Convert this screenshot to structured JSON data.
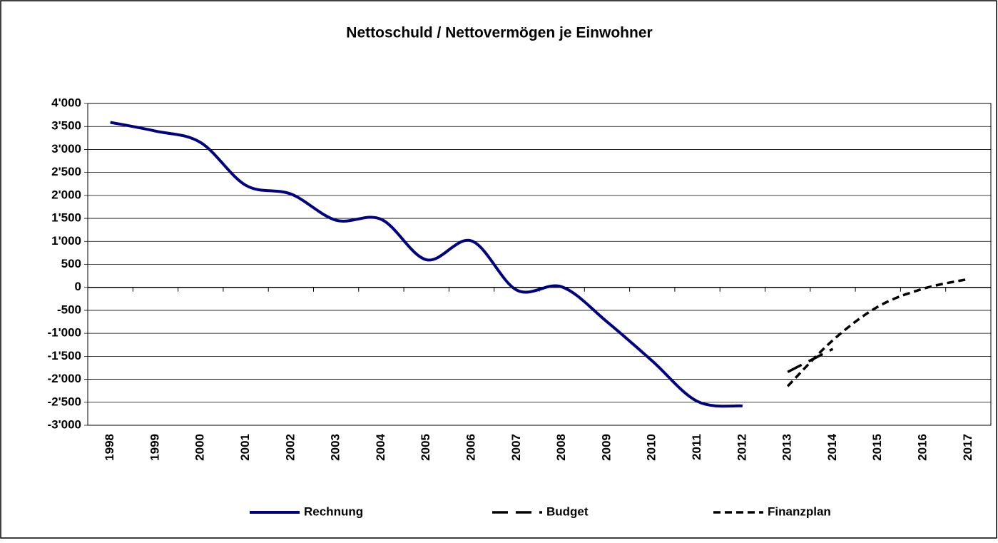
{
  "chart_data": {
    "type": "line",
    "title": "Nettoschuld / Nettovermögen je Einwohner",
    "categories": [
      "1998",
      "1999",
      "2000",
      "2001",
      "2002",
      "2003",
      "2004",
      "2005",
      "2006",
      "2007",
      "2008",
      "2009",
      "2010",
      "2011",
      "2012",
      "2013",
      "2014",
      "2015",
      "2016",
      "2017"
    ],
    "series": [
      {
        "name": "Rechnung",
        "color": "#000080",
        "style": "solid",
        "values": [
          3590,
          3400,
          3150,
          2220,
          2030,
          1460,
          1480,
          600,
          1010,
          -60,
          10,
          -750,
          -1600,
          -2480,
          -2580,
          null,
          null,
          null,
          null,
          null
        ]
      },
      {
        "name": "Budget",
        "color": "#000000",
        "style": "long-dash",
        "values": [
          null,
          null,
          null,
          null,
          null,
          null,
          null,
          null,
          null,
          null,
          null,
          null,
          null,
          null,
          null,
          -1840,
          -1340,
          null,
          null,
          null
        ]
      },
      {
        "name": "Finanzplan",
        "color": "#000000",
        "style": "short-dash",
        "values": [
          null,
          null,
          null,
          null,
          null,
          null,
          null,
          null,
          null,
          null,
          null,
          null,
          null,
          null,
          null,
          -2150,
          -1150,
          -420,
          -30,
          180
        ]
      }
    ],
    "ylim": [
      -3000,
      4000
    ],
    "yticks": [
      {
        "value": -3000,
        "label": "-3'000"
      },
      {
        "value": -2500,
        "label": "-2'500"
      },
      {
        "value": -2000,
        "label": "-2'000"
      },
      {
        "value": -1500,
        "label": "-1'500"
      },
      {
        "value": -1000,
        "label": "-1'000"
      },
      -500,
      0,
      500,
      {
        "value": 1000,
        "label": "1'000"
      },
      {
        "value": 1500,
        "label": "1'500"
      },
      {
        "value": 2000,
        "label": "2'000"
      },
      {
        "value": 2500,
        "label": "2'500"
      },
      {
        "value": 3000,
        "label": "3'000"
      },
      {
        "value": 3500,
        "label": "3'500"
      },
      {
        "value": 4000,
        "label": "4'000"
      }
    ],
    "grid": true,
    "legend": "bottom"
  }
}
